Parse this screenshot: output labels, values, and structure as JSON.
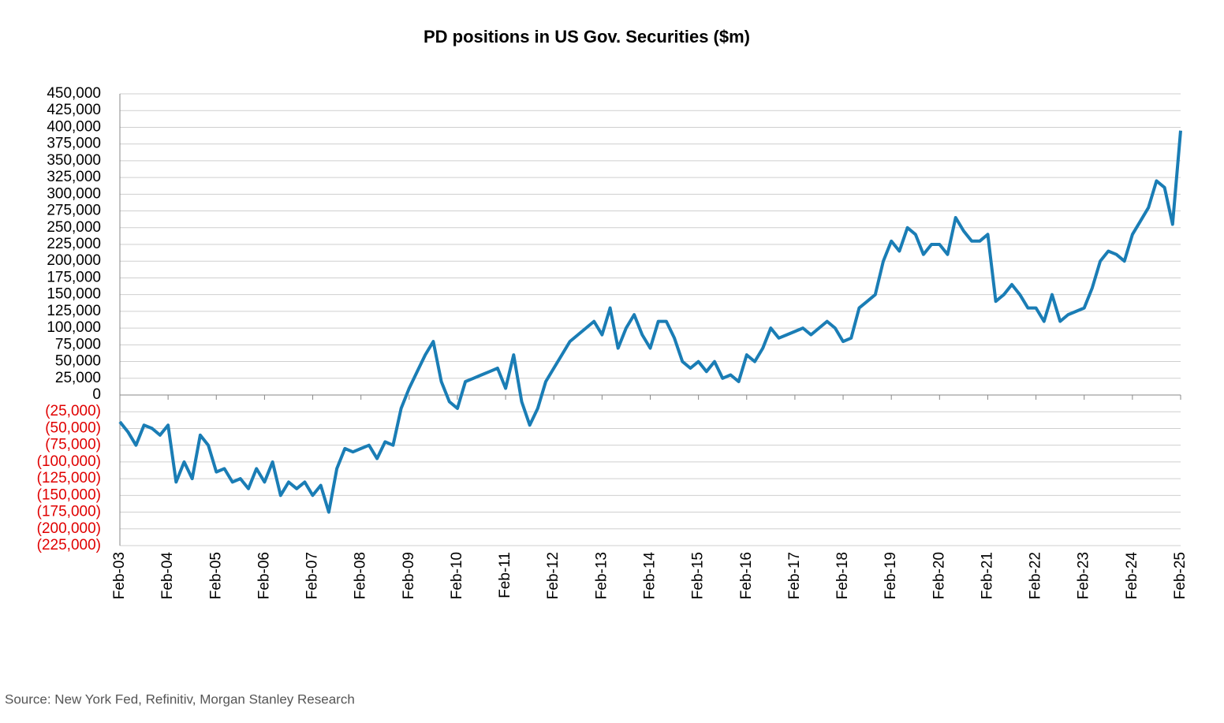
{
  "chart_data": {
    "type": "line",
    "title": "PD positions in US Gov. Securities ($m)",
    "source": "Source: New York Fed, Refinitiv, Morgan Stanley Research",
    "categories": [
      "Feb-03",
      null,
      null,
      null,
      null,
      null,
      "Feb-04",
      null,
      null,
      null,
      null,
      null,
      "Feb-05",
      null,
      null,
      null,
      null,
      null,
      "Feb-06",
      null,
      null,
      null,
      null,
      null,
      "Feb-07",
      null,
      null,
      null,
      null,
      null,
      "Feb-08",
      null,
      null,
      null,
      null,
      null,
      "Feb-09",
      null,
      null,
      null,
      null,
      null,
      "Feb-10",
      null,
      null,
      null,
      null,
      null,
      "Feb-11",
      null,
      null,
      null,
      null,
      null,
      "Feb-12",
      null,
      null,
      null,
      null,
      null,
      "Feb-13",
      null,
      null,
      null,
      null,
      null,
      "Feb-14",
      null,
      null,
      null,
      null,
      null,
      "Feb-15",
      null,
      null,
      null,
      null,
      null,
      "Feb-16",
      null,
      null,
      null,
      null,
      null,
      "Feb-17",
      null,
      null,
      null,
      null,
      null,
      "Feb-18",
      null,
      null,
      null,
      null,
      null,
      "Feb-19",
      null,
      null,
      null,
      null,
      null,
      "Feb-20",
      null,
      null,
      null,
      null,
      null,
      "Feb-21",
      null,
      null,
      null,
      null,
      null,
      "Feb-22",
      null,
      null,
      null,
      null,
      null,
      "Feb-23",
      null,
      null,
      null,
      null,
      null,
      "Feb-24",
      null,
      null,
      null,
      null,
      null,
      "Feb-25"
    ],
    "series": [
      {
        "name": "PD positions",
        "color": "#1a7db5",
        "values": [
          -40000,
          -55000,
          -75000,
          -45000,
          -50000,
          -60000,
          -45000,
          -130000,
          -100000,
          -125000,
          -60000,
          -75000,
          -115000,
          -110000,
          -130000,
          -125000,
          -140000,
          -110000,
          -130000,
          -100000,
          -150000,
          -130000,
          -140000,
          -130000,
          -150000,
          -135000,
          -175000,
          -110000,
          -80000,
          -85000,
          -80000,
          -75000,
          -95000,
          -70000,
          -75000,
          -20000,
          10000,
          35000,
          60000,
          80000,
          20000,
          -10000,
          -20000,
          20000,
          25000,
          30000,
          35000,
          40000,
          10000,
          60000,
          -10000,
          -45000,
          -20000,
          20000,
          40000,
          60000,
          80000,
          90000,
          100000,
          110000,
          90000,
          130000,
          70000,
          100000,
          120000,
          90000,
          70000,
          110000,
          110000,
          85000,
          50000,
          40000,
          50000,
          35000,
          50000,
          25000,
          30000,
          20000,
          60000,
          50000,
          70000,
          100000,
          85000,
          90000,
          95000,
          100000,
          90000,
          100000,
          110000,
          100000,
          80000,
          85000,
          130000,
          140000,
          150000,
          200000,
          230000,
          215000,
          250000,
          240000,
          210000,
          225000,
          225000,
          210000,
          265000,
          245000,
          230000,
          230000,
          240000,
          140000,
          150000,
          165000,
          150000,
          130000,
          130000,
          110000,
          150000,
          110000,
          120000,
          125000,
          130000,
          160000,
          200000,
          215000,
          210000,
          200000,
          240000,
          260000,
          280000,
          320000,
          310000,
          255000,
          395000
        ]
      }
    ],
    "ylim": [
      -225000,
      450000
    ],
    "yticks": [
      {
        "value": -225000,
        "label": "(225,000)"
      },
      {
        "value": -200000,
        "label": "(200,000)"
      },
      {
        "value": -175000,
        "label": "(175,000)"
      },
      {
        "value": -150000,
        "label": "(150,000)"
      },
      {
        "value": -125000,
        "label": "(125,000)"
      },
      {
        "value": -100000,
        "label": "(100,000)"
      },
      {
        "value": -75000,
        "label": "(75,000)"
      },
      {
        "value": -50000,
        "label": "(50,000)"
      },
      {
        "value": -25000,
        "label": "(25,000)"
      },
      0,
      {
        "value": 25000,
        "label": "25,000"
      },
      {
        "value": 50000,
        "label": "50,000"
      },
      {
        "value": 75000,
        "label": "75,000"
      },
      {
        "value": 100000,
        "label": "100,000"
      },
      {
        "value": 125000,
        "label": "125,000"
      },
      {
        "value": 150000,
        "label": "150,000"
      },
      {
        "value": 175000,
        "label": "175,000"
      },
      {
        "value": 200000,
        "label": "200,000"
      },
      {
        "value": 225000,
        "label": "225,000"
      },
      {
        "value": 250000,
        "label": "250,000"
      },
      {
        "value": 275000,
        "label": "275,000"
      },
      {
        "value": 300000,
        "label": "300,000"
      },
      {
        "value": 325000,
        "label": "325,000"
      },
      {
        "value": 350000,
        "label": "350,000"
      },
      {
        "value": 375000,
        "label": "375,000"
      },
      {
        "value": 400000,
        "label": "400,000"
      },
      {
        "value": 425000,
        "label": "425,000"
      },
      {
        "value": 450000,
        "label": "450,000"
      }
    ],
    "grid": true,
    "negative_tick_color": "#e00000"
  }
}
